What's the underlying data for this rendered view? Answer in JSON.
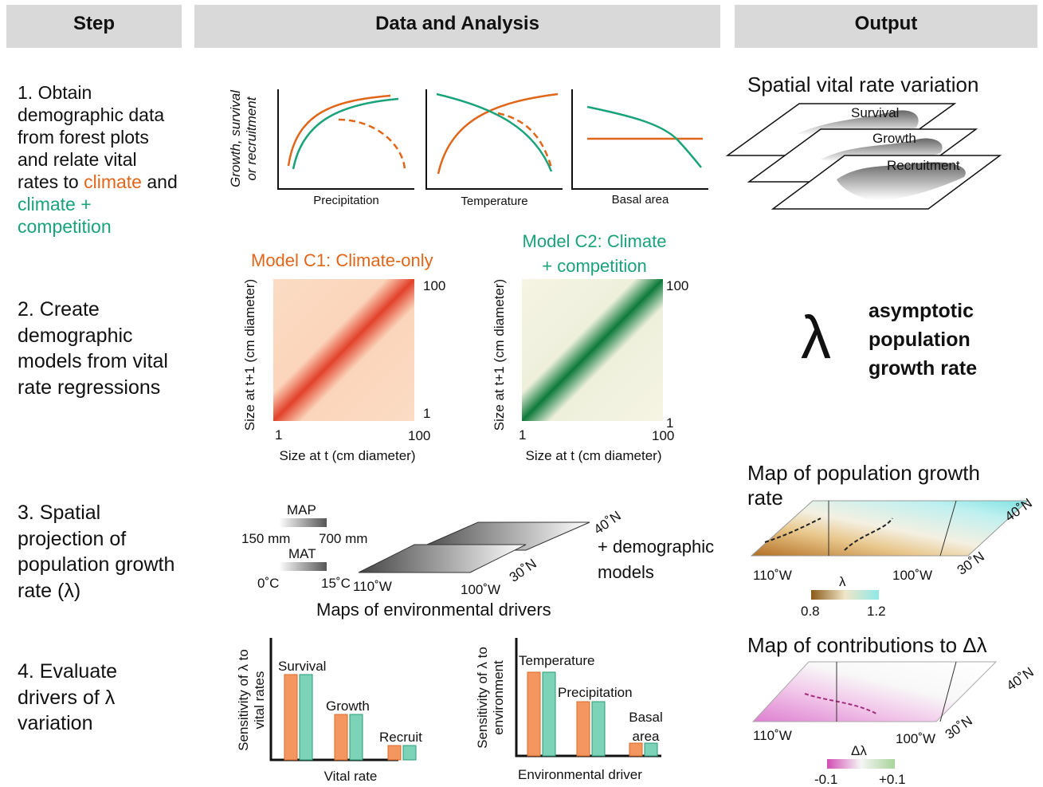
{
  "header": {
    "step": "Step",
    "analysis": "Data and Analysis",
    "output": "Output"
  },
  "steps": [
    {
      "parts": [
        "1. Obtain demographic data from forest plots and relate vital rates to",
        "climate",
        "and",
        "climate + competition"
      ]
    },
    {
      "text": "2. Create demographic models from vital rate regressions"
    },
    {
      "text": "3. Spatial projection of population growth rate (λ)"
    },
    {
      "text": "4. Evaluate drivers of λ variation"
    }
  ],
  "row1": {
    "y_label": "Growth, survival or recruitment",
    "x_labels": [
      "Precipitation",
      "Temperature",
      "Basal area"
    ],
    "output_title": "Spatial vital rate variation",
    "layers": [
      "Survival",
      "Growth",
      "Recruitment"
    ]
  },
  "row2": {
    "model_c1": "Model C1: Climate-only",
    "model_c2": [
      "Model C2: Climate",
      "+ competition"
    ],
    "y_label": "Size at t+1 (cm diameter)",
    "x_label": "Size at t (cm diameter)",
    "tick_low": "1",
    "tick_high": "100",
    "lambda": "λ",
    "lambda_text": "asymptotic population growth rate"
  },
  "row3": {
    "map_label": "MAP",
    "map_low": "150 mm",
    "map_high": "700 mm",
    "mat_label": "MAT",
    "mat_low": "0˚C",
    "mat_high": "15˚C",
    "lon_west": "110˚W",
    "lon_east": "100˚W",
    "lat_south": "30˚N",
    "lat_north": "40˚N",
    "plus_models": "+ demographic models",
    "caption": "Maps of environmental drivers",
    "output_title": "Map of population growth rate",
    "legend_title": "λ",
    "legend_low": "0.8",
    "legend_high": "1.2"
  },
  "row4": {
    "chart1_y": "Sensitivity of λ to vital rates",
    "chart1_bars": [
      "Survival",
      "Growth",
      "Recruit"
    ],
    "chart1_x": "Vital rate",
    "chart2_y": "Sensitivity of λ to environment",
    "chart2_bars": [
      "Temperature",
      "Precipitation",
      "Basal area"
    ],
    "chart2_x": "Environmental driver",
    "output_title": "Map of contributions to Δλ",
    "legend_title": "Δλ",
    "legend_low": "-0.1",
    "legend_high": "+0.1"
  }
}
